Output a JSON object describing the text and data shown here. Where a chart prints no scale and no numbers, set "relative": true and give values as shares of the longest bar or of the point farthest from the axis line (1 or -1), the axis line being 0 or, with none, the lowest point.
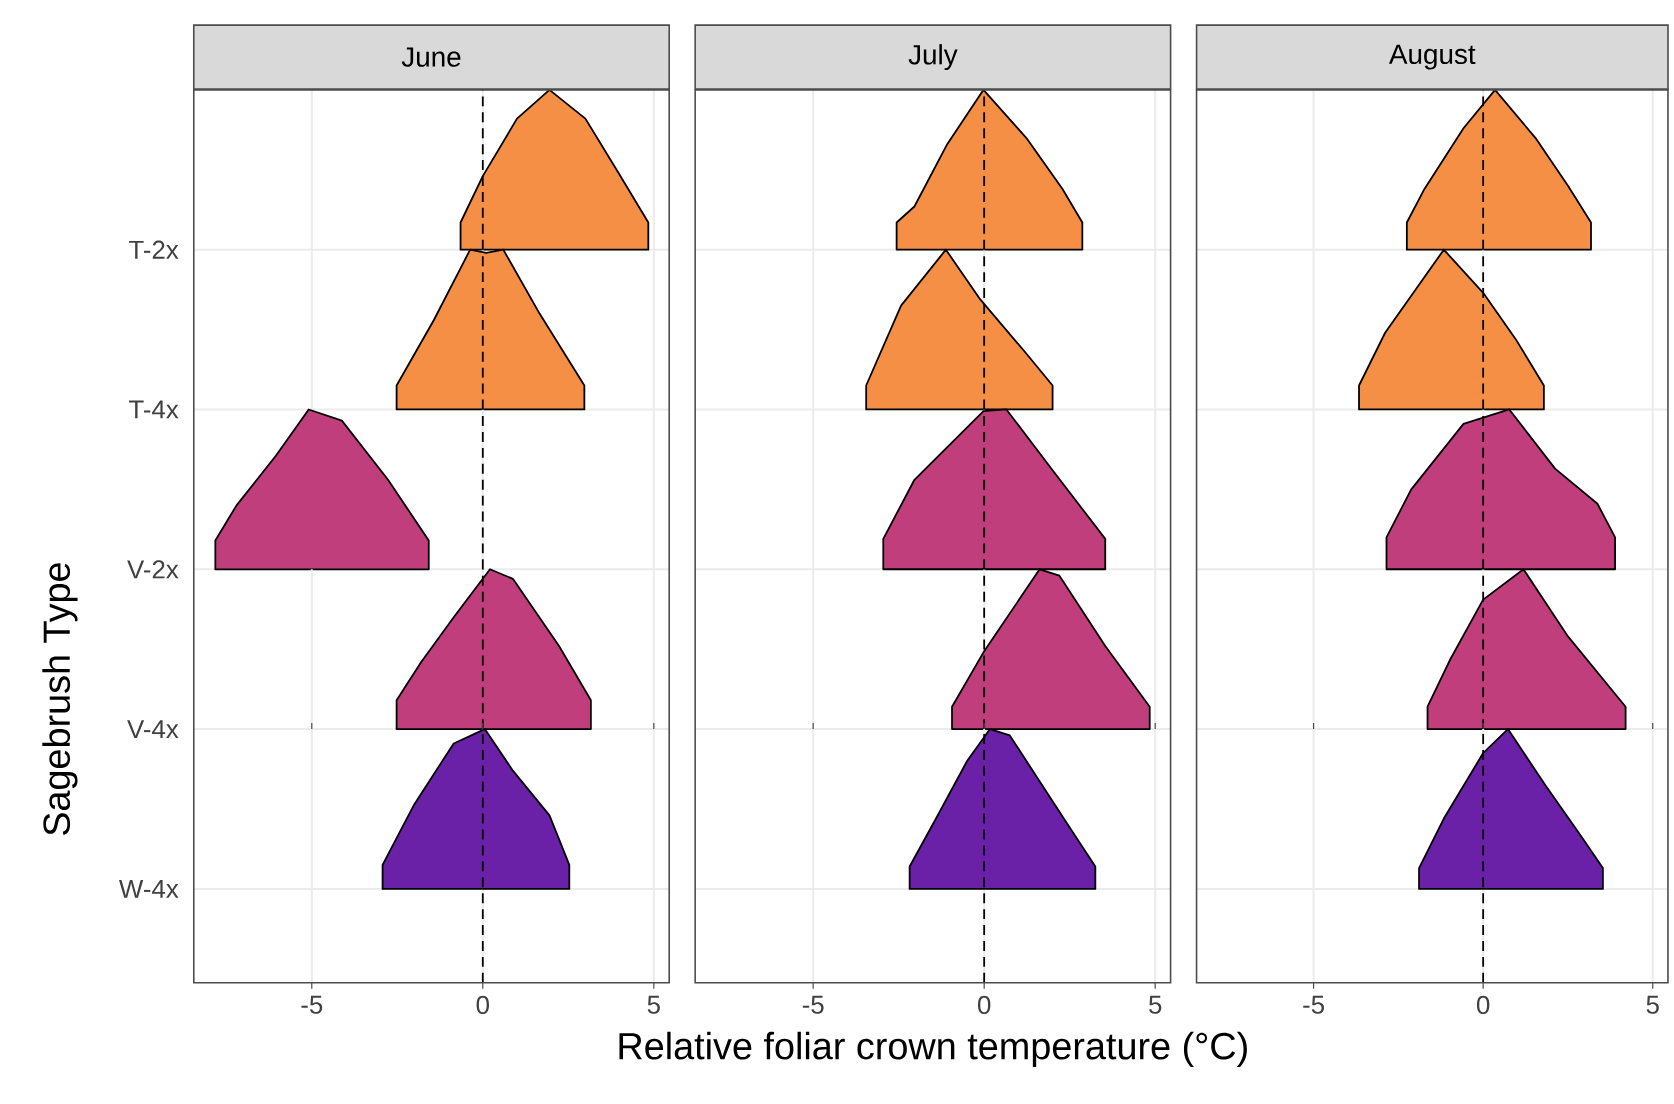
{
  "chart_data": [
    {
      "type": "area",
      "title": "June",
      "ylabel": "T-2x",
      "relative": true,
      "xlim": [
        -8.45,
        5.45
      ],
      "xticks": [
        -5,
        0,
        5
      ],
      "grid": true,
      "tick_labels": false,
      "ref_lines": [
        {
          "axis": "x",
          "value": 0,
          "line_style": "dashed",
          "color": "#000000"
        }
      ],
      "color": "#f68f46",
      "x": [
        -0.65,
        0,
        1,
        1.95,
        3,
        3.97,
        4.84
      ],
      "values": [
        0.17,
        0.46,
        0.82,
        1,
        0.82,
        0.48,
        0.17
      ]
    },
    {
      "type": "area",
      "ylabel": "T-4x",
      "relative": true,
      "xlim": [
        -8.45,
        5.45
      ],
      "xticks": [
        -5,
        0,
        5
      ],
      "grid": true,
      "tick_labels": false,
      "ref_lines": [
        {
          "axis": "x",
          "value": 0,
          "line_style": "dashed",
          "color": "#000000"
        }
      ],
      "color": "#f68f46",
      "x": [
        -2.52,
        -1.43,
        -0.37,
        0.1,
        0.6,
        1.66,
        2.97
      ],
      "values": [
        0.15,
        0.56,
        1,
        0.98,
        1,
        0.6,
        0.15
      ]
    },
    {
      "type": "area",
      "ylabel": "V-2x",
      "annotations": [
        "Sagebrush Type"
      ],
      "relative": true,
      "xlim": [
        -8.45,
        5.45
      ],
      "xticks": [
        -5,
        0,
        5
      ],
      "grid": true,
      "tick_labels": false,
      "ref_lines": [
        {
          "axis": "x",
          "value": 0,
          "line_style": "dashed",
          "color": "#000000"
        }
      ],
      "color": "#c13e7d",
      "x": [
        -7.82,
        -7.2,
        -6.05,
        -5.09,
        -4.12,
        -2.77,
        -1.58
      ],
      "values": [
        0.18,
        0.4,
        0.71,
        1,
        0.93,
        0.56,
        0.18
      ]
    },
    {
      "type": "area",
      "ylabel": "V-4x",
      "relative": true,
      "xlim": [
        -8.45,
        5.45
      ],
      "xticks": [
        -5,
        0,
        5
      ],
      "grid": true,
      "tick_labels": false,
      "ref_lines": [
        {
          "axis": "x",
          "value": 0,
          "line_style": "dashed",
          "color": "#000000"
        }
      ],
      "color": "#c13e7d",
      "x": [
        -2.52,
        -1.8,
        -0.85,
        0.21,
        0.88,
        2.23,
        3.16
      ],
      "values": [
        0.18,
        0.42,
        0.7,
        1,
        0.94,
        0.52,
        0.18
      ]
    },
    {
      "type": "area",
      "ylabel": "W-4x",
      "relative": true,
      "xlim": [
        -8.45,
        5.45
      ],
      "xticks": [
        -5,
        0,
        5
      ],
      "grid": true,
      "tick_labels": "x",
      "ref_lines": [
        {
          "axis": "x",
          "value": 0,
          "line_style": "dashed",
          "color": "#000000"
        }
      ],
      "color": "#6a21a8",
      "x": [
        -2.93,
        -2.0,
        -0.85,
        0.06,
        0.88,
        1.95,
        2.53
      ],
      "values": [
        0.15,
        0.53,
        0.91,
        1,
        0.74,
        0.46,
        0.15
      ]
    },
    {
      "type": "area",
      "title": "July",
      "relative": true,
      "xlim": [
        -8.45,
        5.45
      ],
      "xticks": [
        -5,
        0,
        5
      ],
      "grid": true,
      "tick_labels": false,
      "ref_lines": [
        {
          "axis": "x",
          "value": 0,
          "line_style": "dashed",
          "color": "#000000"
        }
      ],
      "color": "#f68f46",
      "x": [
        -2.56,
        -2.04,
        -1.08,
        -0.02,
        1.23,
        2.29,
        2.87
      ],
      "values": [
        0.17,
        0.27,
        0.66,
        1,
        0.7,
        0.38,
        0.17
      ]
    },
    {
      "type": "area",
      "relative": true,
      "xlim": [
        -8.45,
        5.45
      ],
      "xticks": [
        -5,
        0,
        5
      ],
      "grid": true,
      "tick_labels": false,
      "ref_lines": [
        {
          "axis": "x",
          "value": 0,
          "line_style": "dashed",
          "color": "#000000"
        }
      ],
      "color": "#f68f46",
      "x": [
        -3.45,
        -2.43,
        -1.12,
        -0.12,
        1.23,
        2.0
      ],
      "values": [
        0.15,
        0.65,
        1,
        0.69,
        0.35,
        0.15
      ]
    },
    {
      "type": "area",
      "relative": true,
      "xlim": [
        -8.45,
        5.45
      ],
      "xticks": [
        -5,
        0,
        5
      ],
      "grid": true,
      "tick_labels": false,
      "ref_lines": [
        {
          "axis": "x",
          "value": 0,
          "line_style": "dashed",
          "color": "#000000"
        }
      ],
      "color": "#c13e7d",
      "x": [
        -2.95,
        -2.04,
        -0.02,
        0.65,
        2.0,
        3.54
      ],
      "values": [
        0.19,
        0.56,
        0.99,
        1,
        0.62,
        0.19
      ]
    },
    {
      "type": "area",
      "relative": true,
      "xlim": [
        -8.45,
        5.45
      ],
      "xticks": [
        -5,
        0,
        5
      ],
      "grid": true,
      "tick_labels": false,
      "ref_lines": [
        {
          "axis": "x",
          "value": 0,
          "line_style": "dashed",
          "color": "#000000"
        }
      ],
      "color": "#c13e7d",
      "x": [
        -0.94,
        -0.02,
        1.62,
        2.2,
        3.54,
        4.84
      ],
      "values": [
        0.14,
        0.48,
        1,
        0.96,
        0.52,
        0.14
      ]
    },
    {
      "type": "area",
      "xlabel": "Relative foliar crown temperature (°C)",
      "relative": true,
      "xlim": [
        -8.45,
        5.45
      ],
      "xticks": [
        -5,
        0,
        5
      ],
      "grid": true,
      "tick_labels": "x",
      "ref_lines": [
        {
          "axis": "x",
          "value": 0,
          "line_style": "dashed",
          "color": "#000000"
        }
      ],
      "color": "#6a21a8",
      "x": [
        -2.18,
        -1.46,
        -0.5,
        0.17,
        0.75,
        2.39,
        3.25
      ],
      "values": [
        0.14,
        0.42,
        0.8,
        1,
        0.96,
        0.42,
        0.14
      ]
    },
    {
      "type": "area",
      "title": "August",
      "relative": true,
      "xlim": [
        -8.45,
        5.45
      ],
      "xticks": [
        -5,
        0,
        5
      ],
      "grid": true,
      "tick_labels": false,
      "ref_lines": [
        {
          "axis": "x",
          "value": 0,
          "line_style": "dashed",
          "color": "#000000"
        }
      ],
      "color": "#f68f46",
      "x": [
        -2.25,
        -1.73,
        -0.58,
        0.35,
        1.54,
        2.5,
        3.18
      ],
      "values": [
        0.17,
        0.38,
        0.76,
        1,
        0.7,
        0.4,
        0.17
      ]
    },
    {
      "type": "area",
      "relative": true,
      "xlim": [
        -8.45,
        5.45
      ],
      "xticks": [
        -5,
        0,
        5
      ],
      "grid": true,
      "tick_labels": false,
      "ref_lines": [
        {
          "axis": "x",
          "value": 0,
          "line_style": "dashed",
          "color": "#000000"
        }
      ],
      "color": "#f68f46",
      "x": [
        -3.66,
        -2.89,
        -1.16,
        0.0,
        0.96,
        1.79
      ],
      "values": [
        0.15,
        0.48,
        1,
        0.73,
        0.44,
        0.15
      ]
    },
    {
      "type": "area",
      "relative": true,
      "xlim": [
        -8.45,
        5.45
      ],
      "xticks": [
        -5,
        0,
        5
      ],
      "grid": true,
      "tick_labels": false,
      "ref_lines": [
        {
          "axis": "x",
          "value": 0,
          "line_style": "dashed",
          "color": "#000000"
        }
      ],
      "color": "#c13e7d",
      "x": [
        -2.85,
        -2.12,
        -0.58,
        0.77,
        2.12,
        3.37,
        3.89
      ],
      "values": [
        0.2,
        0.5,
        0.91,
        1,
        0.63,
        0.41,
        0.2
      ]
    },
    {
      "type": "area",
      "relative": true,
      "xlim": [
        -8.45,
        5.45
      ],
      "xticks": [
        -5,
        0,
        5
      ],
      "grid": true,
      "tick_labels": false,
      "ref_lines": [
        {
          "axis": "x",
          "value": 0,
          "line_style": "dashed",
          "color": "#000000"
        }
      ],
      "color": "#c13e7d",
      "x": [
        -1.64,
        -0.96,
        0.0,
        1.19,
        2.5,
        4.2
      ],
      "values": [
        0.14,
        0.44,
        0.81,
        1,
        0.58,
        0.14
      ]
    },
    {
      "type": "area",
      "relative": true,
      "xlim": [
        -8.45,
        5.45
      ],
      "xticks": [
        -5,
        0,
        5
      ],
      "grid": true,
      "tick_labels": "x",
      "ref_lines": [
        {
          "axis": "x",
          "value": 0,
          "line_style": "dashed",
          "color": "#000000"
        }
      ],
      "color": "#6a21a8",
      "x": [
        -1.89,
        -1.16,
        0.0,
        0.73,
        1.83,
        2.89,
        3.53
      ],
      "values": [
        0.13,
        0.44,
        0.85,
        1,
        0.65,
        0.33,
        0.13
      ]
    }
  ]
}
